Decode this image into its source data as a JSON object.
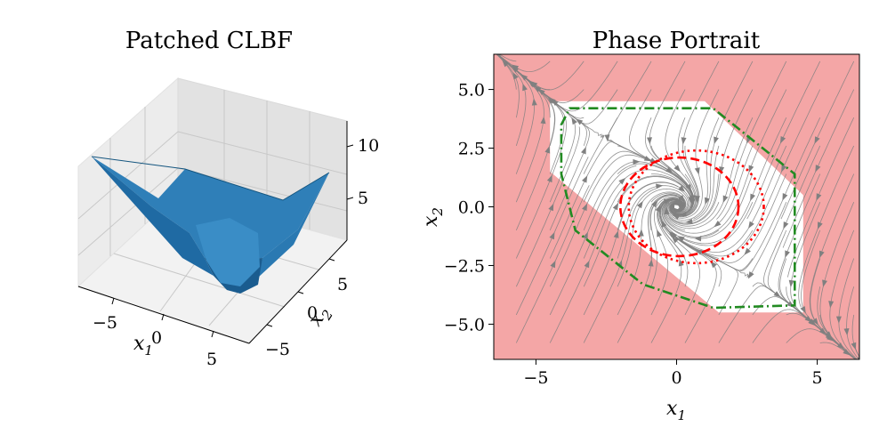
{
  "chart_data": [
    {
      "type": "surface3d",
      "title": "Patched CLBF",
      "xlabel": "x",
      "xlabel_sub": "1",
      "ylabel": "x",
      "ylabel_sub": "2",
      "x_ticks": [
        "−5",
        "0",
        "5"
      ],
      "y_ticks": [
        "5",
        "0",
        "−5"
      ],
      "z_ticks": [
        "10",
        "5"
      ],
      "xlim": [
        -6.5,
        6.5
      ],
      "ylim": [
        -6.5,
        6.5
      ],
      "zlim": [
        0,
        11
      ],
      "surface_color": "#1f77b4",
      "description_values": {
        "min_z": 0.5,
        "corner_max_z": 10.5
      }
    },
    {
      "type": "streamplot",
      "title": "Phase Portrait",
      "xlabel": "x",
      "xlabel_sub": "1",
      "ylabel": "x",
      "ylabel_sub": "2",
      "xlim": [
        -6.5,
        6.5
      ],
      "ylim": [
        -6.5,
        6.5
      ],
      "x_ticks": [
        {
          "value": -5,
          "label": "−5"
        },
        {
          "value": 0,
          "label": "0"
        },
        {
          "value": 5,
          "label": "5"
        }
      ],
      "y_ticks": [
        {
          "value": 5,
          "label": "5.0"
        },
        {
          "value": 2.5,
          "label": "2.5"
        },
        {
          "value": 0,
          "label": "0.0"
        },
        {
          "value": -2.5,
          "label": "−2.5"
        },
        {
          "value": -5,
          "label": "−5.0"
        }
      ],
      "unsafe_color": "#f4a6a6",
      "safe_region_polygon": [
        [
          -4.5,
          4.5
        ],
        [
          1.0,
          4.5
        ],
        [
          4.5,
          0.5
        ],
        [
          4.5,
          -4.5
        ],
        [
          1.5,
          -4.5
        ],
        [
          -4.5,
          1.5
        ]
      ],
      "curves": [
        {
          "name": "certified-set",
          "style": "dash-dot",
          "color": "#228b22",
          "points": [
            [
              -3.8,
              4.2
            ],
            [
              1.3,
              4.2
            ],
            [
              4.2,
              1.4
            ],
            [
              4.2,
              -4.2
            ],
            [
              1.3,
              -4.3
            ],
            [
              -1.2,
              -3.3
            ],
            [
              -3.6,
              -1.0
            ],
            [
              -4.1,
              1.4
            ],
            [
              -4.1,
              3.5
            ]
          ]
        },
        {
          "name": "level-set-dashed",
          "style": "dashed",
          "color": "#ff0000",
          "ellipse": {
            "cx": 0.1,
            "cy": 0.0,
            "rx": 2.1,
            "ry": 2.1
          }
        },
        {
          "name": "level-set-dotted",
          "style": "dotted",
          "color": "#ff0000",
          "ellipse": {
            "cx": 0.7,
            "cy": 0.0,
            "rx": 2.4,
            "ry": 2.4
          }
        }
      ],
      "stream_color": "#808080"
    }
  ]
}
